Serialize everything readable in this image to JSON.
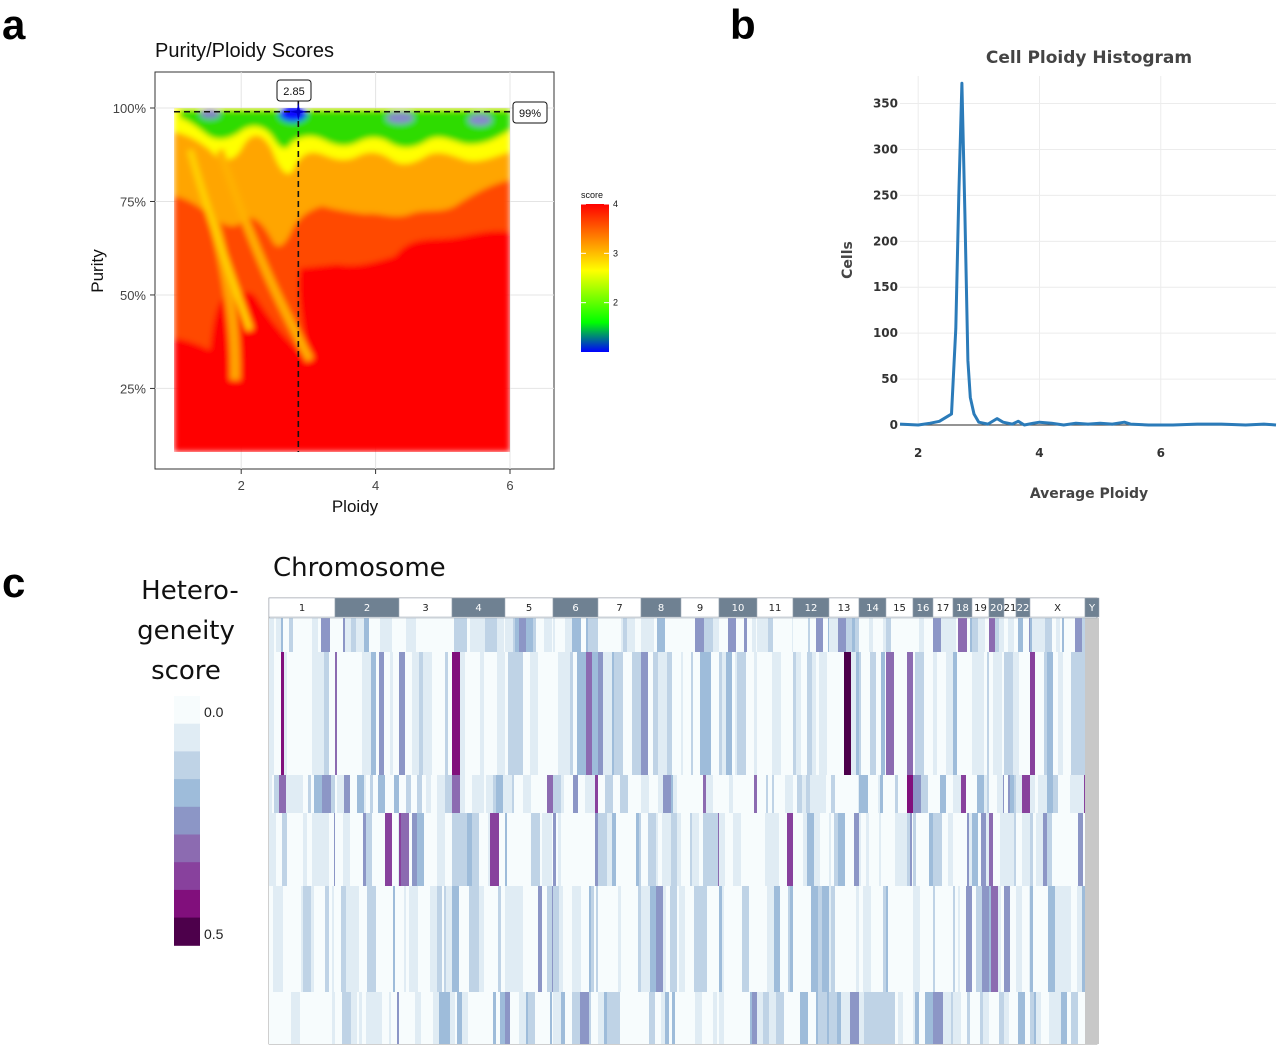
{
  "panels": {
    "a": "a",
    "b": "b",
    "c": "c"
  },
  "chart_data": [
    {
      "type": "heatmap",
      "title": "Purity/Ploidy Scores",
      "xlabel": "Ploidy",
      "ylabel": "Purity",
      "x_ticks": [
        "2",
        "4",
        "6"
      ],
      "y_ticks": [
        "100%",
        "75%",
        "50%",
        "25%"
      ],
      "xlim": [
        1,
        6
      ],
      "ylim": [
        0.08,
        1.0
      ],
      "legend": {
        "title": "score",
        "ticks": [
          "4",
          "3",
          "2"
        ],
        "range": [
          1,
          4
        ],
        "placement": "right"
      },
      "optimum": {
        "ploidy": 2.85,
        "purity": 0.99,
        "ploidy_label": "2.85",
        "purity_label": "99%"
      },
      "colors": {
        "low": "#0000ff",
        "mid": "#00ff00",
        "high": "#ff0000"
      }
    },
    {
      "type": "line",
      "title": "Cell Ploidy Histogram",
      "xlabel": "Average Ploidy",
      "ylabel": "Cells",
      "x_ticks": [
        "2",
        "4",
        "6"
      ],
      "y_ticks": [
        "0",
        "50",
        "100",
        "150",
        "200",
        "250",
        "300",
        "350"
      ],
      "xlim": [
        1.7,
        7.9
      ],
      "ylim": [
        0,
        380
      ],
      "color": "#2b7bb9",
      "series": [
        {
          "x": [
            1.7,
            2.0,
            2.2,
            2.35,
            2.5,
            2.55,
            2.62,
            2.67,
            2.72,
            2.77,
            2.82,
            2.86,
            2.92,
            3.0,
            3.15,
            3.3,
            3.4,
            3.55,
            3.65,
            3.75,
            3.9,
            4.0,
            4.2,
            4.4,
            4.6,
            4.8,
            5.0,
            5.2,
            5.4,
            5.5,
            5.8,
            6.2,
            6.6,
            7.0,
            7.4,
            7.7,
            7.9
          ],
          "y": [
            1,
            0,
            2,
            4,
            10,
            12,
            105,
            250,
            372,
            230,
            70,
            30,
            12,
            3,
            1,
            7,
            3,
            1,
            4,
            0,
            2,
            3,
            2,
            0,
            2,
            1,
            2,
            1,
            3,
            1,
            0,
            0,
            1,
            1,
            0,
            1,
            0
          ]
        }
      ]
    },
    {
      "type": "heatmap",
      "title": "Chromosome",
      "legend": {
        "title_lines": [
          "Hetero-",
          "geneity",
          "score"
        ],
        "min_label": "0.0",
        "max_label": "0.5",
        "range": [
          0,
          0.5
        ]
      },
      "chromosomes": [
        "1",
        "2",
        "3",
        "4",
        "5",
        "6",
        "7",
        "8",
        "9",
        "10",
        "11",
        "12",
        "13",
        "14",
        "15",
        "16",
        "17",
        "18",
        "19",
        "20",
        "21",
        "22",
        "X",
        "Y"
      ],
      "chrom_widths": [
        66,
        64,
        53,
        53,
        48,
        45,
        43,
        40,
        38,
        38,
        36,
        36,
        30,
        27,
        27,
        20,
        20,
        19,
        17,
        15,
        12,
        14,
        55,
        14
      ],
      "rows": 7,
      "palette": [
        "#f7fcfd",
        "#e0ecf4",
        "#bfd3e6",
        "#9ebcda",
        "#8c96c6",
        "#8c6bb1",
        "#88419d",
        "#810f7c",
        "#4d004b"
      ]
    }
  ]
}
